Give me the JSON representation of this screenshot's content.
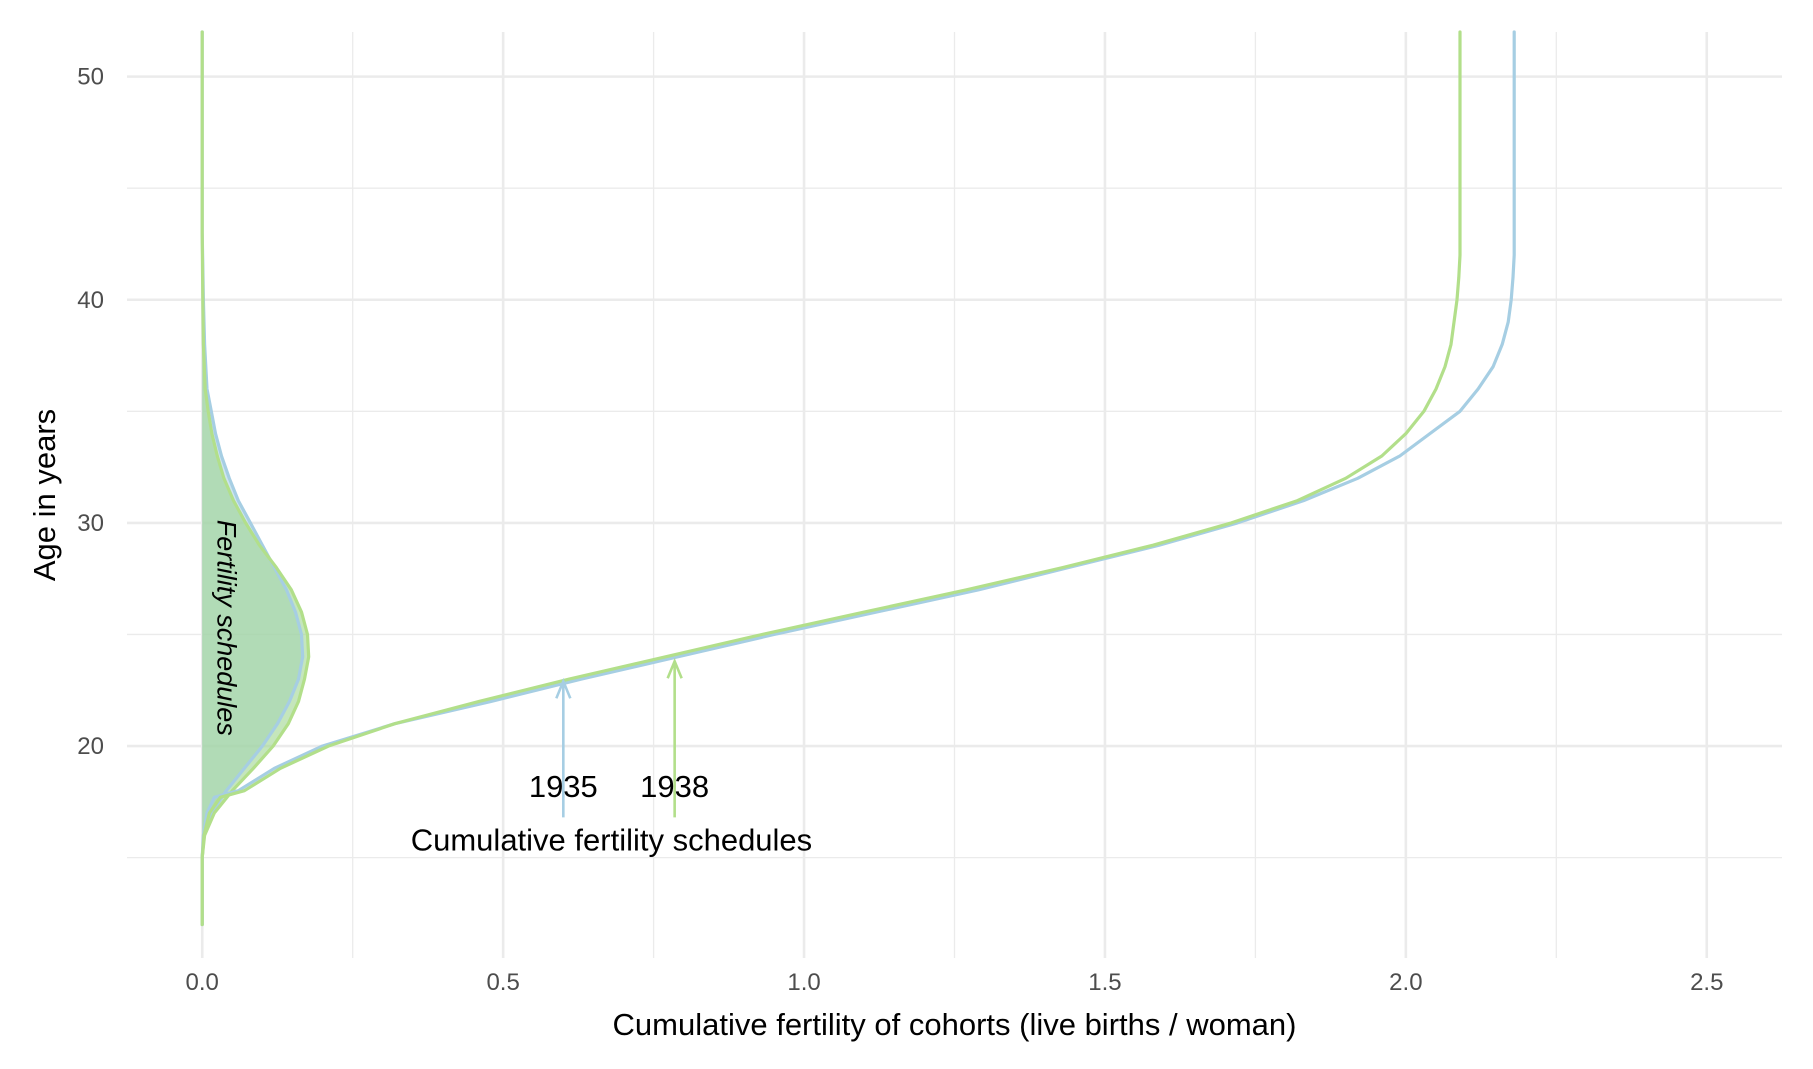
{
  "chart_data": {
    "type": "line",
    "title": "",
    "xlabel": "Cumulative fertility of cohorts (live births / woman)",
    "ylabel": "Age in years",
    "xlim": [
      -0.125,
      2.625
    ],
    "ylim": [
      10.5,
      52.0
    ],
    "x_ticks": [
      0.0,
      0.5,
      1.0,
      1.5,
      2.0,
      2.5
    ],
    "x_tick_labels": [
      "0.0",
      "0.5",
      "1.0",
      "1.5",
      "2.0",
      "2.5"
    ],
    "x_minor_ticks": [
      0.25,
      0.75,
      1.25,
      1.75,
      2.25
    ],
    "y_ticks": [
      20,
      30,
      40,
      50
    ],
    "y_tick_labels": [
      "20",
      "30",
      "40",
      "50"
    ],
    "y_minor_ticks": [
      15,
      25,
      35,
      45
    ],
    "grid": true,
    "legend": "none",
    "colors": {
      "cohort_1935": "#a6cee3",
      "cohort_1938": "#b2df8a",
      "schedule_fill_1935": "#a6cee3",
      "schedule_fill_1938": "#9fd58f",
      "grid": "#ebebeb"
    },
    "series": [
      {
        "name": "1935",
        "kind": "cumulative",
        "x": [
          0.0,
          0.0,
          0.0,
          0.002,
          0.008,
          0.02,
          0.06,
          0.12,
          0.2,
          0.32,
          0.48,
          0.63,
          0.79,
          0.95,
          1.12,
          1.29,
          1.44,
          1.59,
          1.72,
          1.83,
          1.92,
          1.99,
          2.04,
          2.09,
          2.12,
          2.145,
          2.16,
          2.17,
          2.175,
          2.178,
          2.18,
          2.18
        ],
        "y": [
          12,
          14,
          15,
          16,
          17,
          17.7,
          18,
          19,
          20,
          21,
          22,
          23,
          24,
          25,
          26,
          27,
          28,
          29,
          30,
          31,
          32,
          33,
          34,
          35,
          36,
          37,
          38,
          39,
          40,
          41,
          42,
          52
        ]
      },
      {
        "name": "1938",
        "kind": "cumulative",
        "x": [
          0.0,
          0.0,
          0.0,
          0.003,
          0.012,
          0.03,
          0.07,
          0.13,
          0.21,
          0.32,
          0.46,
          0.61,
          0.77,
          0.93,
          1.1,
          1.27,
          1.43,
          1.58,
          1.71,
          1.82,
          1.9,
          1.96,
          2.0,
          2.03,
          2.05,
          2.065,
          2.075,
          2.08,
          2.085,
          2.088,
          2.09,
          2.09
        ],
        "y": [
          12,
          14,
          15,
          16,
          17,
          17.7,
          18,
          19,
          20,
          21,
          22,
          23,
          24,
          25,
          26,
          27,
          28,
          29,
          30,
          31,
          32,
          33,
          34,
          35,
          36,
          37,
          38,
          39,
          40,
          41,
          42,
          52
        ]
      },
      {
        "name": "1935",
        "kind": "schedule",
        "x": [
          0.0,
          0.0,
          0.003,
          0.015,
          0.04,
          0.07,
          0.1,
          0.125,
          0.145,
          0.16,
          0.167,
          0.165,
          0.155,
          0.14,
          0.12,
          0.1,
          0.08,
          0.06,
          0.045,
          0.032,
          0.022,
          0.015,
          0.008,
          0.004,
          0.002,
          0.0,
          0.0
        ],
        "y": [
          12,
          15,
          16,
          17,
          18,
          19,
          20,
          21,
          22,
          23,
          24,
          25,
          26,
          27,
          28,
          29,
          30,
          31,
          32,
          33,
          34,
          35,
          36,
          38,
          40,
          43,
          52
        ]
      },
      {
        "name": "1938",
        "kind": "schedule",
        "x": [
          0.0,
          0.0,
          0.004,
          0.02,
          0.05,
          0.085,
          0.118,
          0.143,
          0.16,
          0.17,
          0.177,
          0.175,
          0.165,
          0.148,
          0.123,
          0.095,
          0.072,
          0.052,
          0.036,
          0.025,
          0.016,
          0.01,
          0.005,
          0.002,
          0.001,
          0.0,
          0.0
        ],
        "y": [
          12,
          15,
          16,
          17,
          18,
          19,
          20,
          21,
          22,
          23,
          24,
          25,
          26,
          27,
          28,
          29,
          30,
          31,
          32,
          33,
          34,
          35,
          36,
          38,
          40,
          43,
          52
        ]
      }
    ],
    "annotations": [
      {
        "text": "1935",
        "x": 0.6,
        "y": 18.2,
        "arrow": {
          "x": 0.6,
          "y_from": 16.8,
          "y_to": 22.9
        },
        "color_key": "cohort_1935"
      },
      {
        "text": "1938",
        "x": 0.785,
        "y": 18.2,
        "arrow": {
          "x": 0.785,
          "y_from": 16.8,
          "y_to": 23.8
        },
        "color_key": "cohort_1938"
      },
      {
        "text": "Cumulative fertility schedules",
        "x": 0.68,
        "y": 15.8
      },
      {
        "text": "Fertility schedules",
        "x": 0.04,
        "y": 25.3,
        "rotate": 90,
        "italic": true
      }
    ]
  }
}
